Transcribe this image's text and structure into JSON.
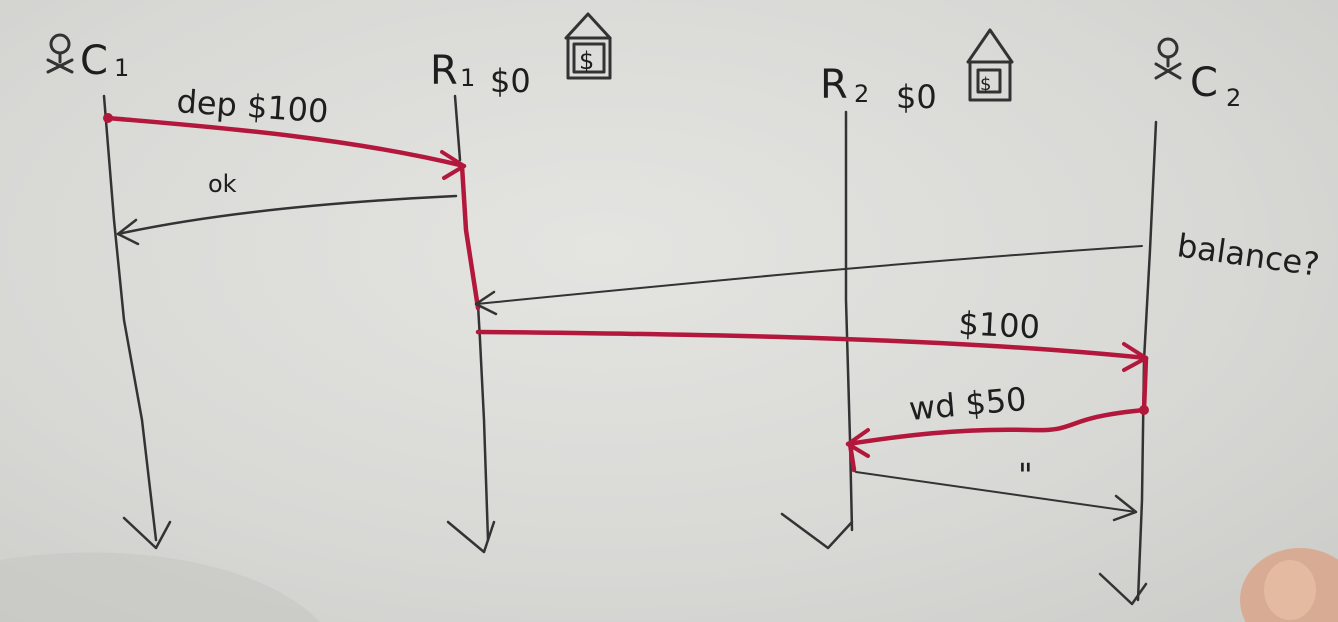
{
  "diagram": {
    "actors": {
      "c1": "C",
      "c1_sub": "1",
      "r1": "R",
      "r1_sub": "1",
      "r1_balance": "$0",
      "r2": "R",
      "r2_sub": "2",
      "r2_balance": "$0",
      "c2": "C",
      "c2_sub": "2"
    },
    "building_symbol": "$",
    "messages": {
      "deposit": "dep $100",
      "ok": "ok",
      "balance_query": "balance?",
      "balance_reply": "$100",
      "withdraw": "wd $50",
      "repeat": "\""
    },
    "colors": {
      "ink": "#333333",
      "causal_path": "#b3173b"
    }
  }
}
